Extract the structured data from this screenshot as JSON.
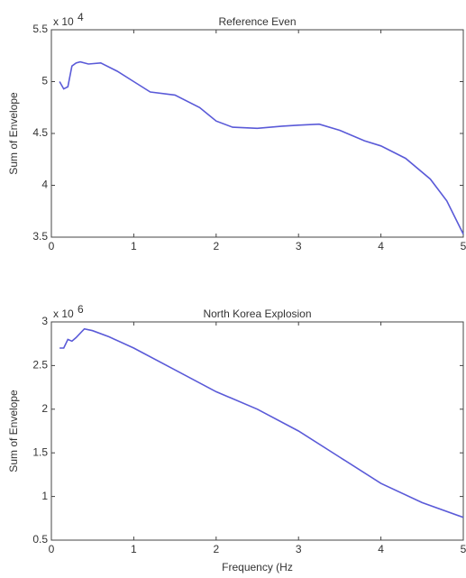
{
  "chart_data": [
    {
      "type": "line",
      "title": "Reference Even",
      "ylabel": "Sum of Envelope",
      "multiplier": {
        "base": "x 10",
        "exponent": "4"
      },
      "x": [
        0.1,
        0.15,
        0.2,
        0.25,
        0.3,
        0.35,
        0.45,
        0.6,
        0.8,
        1.0,
        1.2,
        1.5,
        1.8,
        2.0,
        2.2,
        2.5,
        2.8,
        3.0,
        3.25,
        3.5,
        3.8,
        4.0,
        4.3,
        4.6,
        4.8,
        5.0
      ],
      "values": [
        5.0,
        4.93,
        4.95,
        5.15,
        5.18,
        5.19,
        5.17,
        5.18,
        5.1,
        5.0,
        4.9,
        4.87,
        4.75,
        4.62,
        4.56,
        4.55,
        4.57,
        4.58,
        4.59,
        4.53,
        4.43,
        4.38,
        4.26,
        4.06,
        3.85,
        3.53
      ],
      "color": "#5a5ad8",
      "xlim": [
        0,
        5
      ],
      "xticks": [
        0,
        1,
        2,
        3,
        4,
        5
      ],
      "ylim": [
        3.5,
        5.5
      ],
      "yticks": [
        3.5,
        4,
        4.5,
        5,
        5.5
      ]
    },
    {
      "type": "line",
      "title": "North Korea Explosion",
      "ylabel": "Sum of Envelope",
      "xlabel": "Frequency (Hz",
      "multiplier": {
        "base": "x 10",
        "exponent": "6"
      },
      "x": [
        0.1,
        0.15,
        0.2,
        0.25,
        0.3,
        0.4,
        0.5,
        0.7,
        1.0,
        1.5,
        2.0,
        2.5,
        3.0,
        3.5,
        4.0,
        4.5,
        5.0
      ],
      "values": [
        2.7,
        2.7,
        2.8,
        2.78,
        2.82,
        2.92,
        2.9,
        2.83,
        2.7,
        2.45,
        2.2,
        2.0,
        1.75,
        1.45,
        1.15,
        0.93,
        0.76
      ],
      "color": "#5a5ad8",
      "xlim": [
        0,
        5
      ],
      "xticks": [
        0,
        1,
        2,
        3,
        4,
        5
      ],
      "ylim": [
        0.5,
        3
      ],
      "yticks": [
        0.5,
        1,
        1.5,
        2,
        2.5,
        3
      ]
    }
  ]
}
